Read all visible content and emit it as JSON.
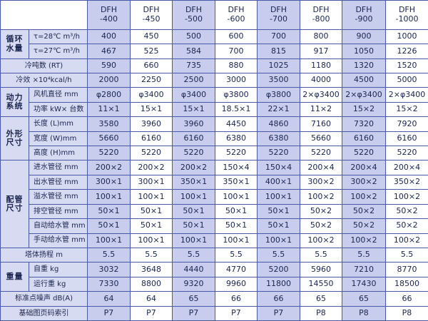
{
  "table": {
    "model_headers": [
      "DFH\n-400",
      "DFH\n-450",
      "DFH\n-500",
      "DFH\n-600",
      "DFH\n-700",
      "DFH\n-800",
      "DFH\n-900",
      "DFH\n-1000"
    ],
    "groups": {
      "circulation": "循环\n水量",
      "power_system": "动力\n系统",
      "dimensions": "外形\n尺寸",
      "piping": "配管\n尺寸",
      "weight": "重量"
    },
    "rows": [
      {
        "label": "τ=28℃ m³/h",
        "values": [
          "400",
          "450",
          "500",
          "600",
          "700",
          "800",
          "900",
          "1000"
        ]
      },
      {
        "label": "τ=27℃ m³/h",
        "values": [
          "467",
          "525",
          "584",
          "700",
          "815",
          "917",
          "1050",
          "1226"
        ]
      },
      {
        "label": "冷吨数 (RT)",
        "values": [
          "590",
          "660",
          "735",
          "880",
          "1025",
          "1180",
          "1320",
          "1520"
        ]
      },
      {
        "label": "冷效 ×10⁴kcal/h",
        "values": [
          "2000",
          "2250",
          "2500",
          "3000",
          "3500",
          "4000",
          "4500",
          "5000"
        ]
      },
      {
        "label": "风机直径 mm",
        "values": [
          "φ2800",
          "φ3400",
          "φ3400",
          "φ3800",
          "φ3800",
          "2×φ3400",
          "2×φ3400",
          "2×φ3400"
        ]
      },
      {
        "label": "功率 kW× 台数",
        "values": [
          "11×1",
          "15×1",
          "15×1",
          "18.5×1",
          "22×1",
          "11×2",
          "15×2",
          "15×2"
        ]
      },
      {
        "label": "长度 (L)mm",
        "values": [
          "3580",
          "3960",
          "3960",
          "4450",
          "4860",
          "7160",
          "7320",
          "7920"
        ]
      },
      {
        "label": "宽度 (W)mm",
        "values": [
          "5660",
          "6160",
          "6160",
          "6380",
          "6380",
          "5660",
          "6160",
          "6160"
        ]
      },
      {
        "label": "高度 (H)mm",
        "values": [
          "5220",
          "5220",
          "5220",
          "5220",
          "5220",
          "5220",
          "5220",
          "5220"
        ]
      },
      {
        "label": "进水管径 mm",
        "values": [
          "200×2",
          "200×2",
          "200×2",
          "150×4",
          "150×4",
          "200×4",
          "200×4",
          "200×4"
        ]
      },
      {
        "label": "出水管径 mm",
        "values": [
          "300×1",
          "300×1",
          "350×1",
          "350×1",
          "400×1",
          "300×2",
          "300×2",
          "350×2"
        ]
      },
      {
        "label": "溢水管径 mm",
        "values": [
          "100×1",
          "100×1",
          "100×1",
          "100×1",
          "100×1",
          "100×2",
          "100×2",
          "100×2"
        ]
      },
      {
        "label": "排空管径 mm",
        "values": [
          "50×1",
          "50×1",
          "50×1",
          "50×1",
          "50×1",
          "50×2",
          "50×2",
          "50×2"
        ]
      },
      {
        "label": "自动给水管 mm",
        "values": [
          "50×1",
          "50×1",
          "50×1",
          "50×1",
          "50×1",
          "50×2",
          "50×2",
          "50×2"
        ]
      },
      {
        "label": "手动给水管 mm",
        "values": [
          "100×1",
          "100×1",
          "100×1",
          "100×1",
          "100×1",
          "100×2",
          "100×2",
          "100×2"
        ]
      },
      {
        "label": "塔体扬程 m",
        "values": [
          "5.5",
          "5.5",
          "5.5",
          "5.5",
          "5.5",
          "5.5",
          "5.5",
          "5.5"
        ]
      },
      {
        "label": "自重 kg",
        "values": [
          "3032",
          "3648",
          "4440",
          "4770",
          "5200",
          "5960",
          "7210",
          "8770"
        ]
      },
      {
        "label": "运行重 kg",
        "values": [
          "7330",
          "8800",
          "9320",
          "9960",
          "11800",
          "14550",
          "17430",
          "18500"
        ]
      },
      {
        "label": "标准点噪声 dB(A)",
        "values": [
          "64",
          "64",
          "65",
          "66",
          "66",
          "65",
          "65",
          "66"
        ]
      },
      {
        "label": "基础图页码索引",
        "values": [
          "P7",
          "P7",
          "P7",
          "P7",
          "P7",
          "P8",
          "P8",
          "P8"
        ]
      }
    ]
  },
  "colors": {
    "border": "#4a5aa6",
    "label_bg": "#d7dbf1",
    "dark_col_bg": "#c8cdee",
    "text": "#1a2550"
  }
}
